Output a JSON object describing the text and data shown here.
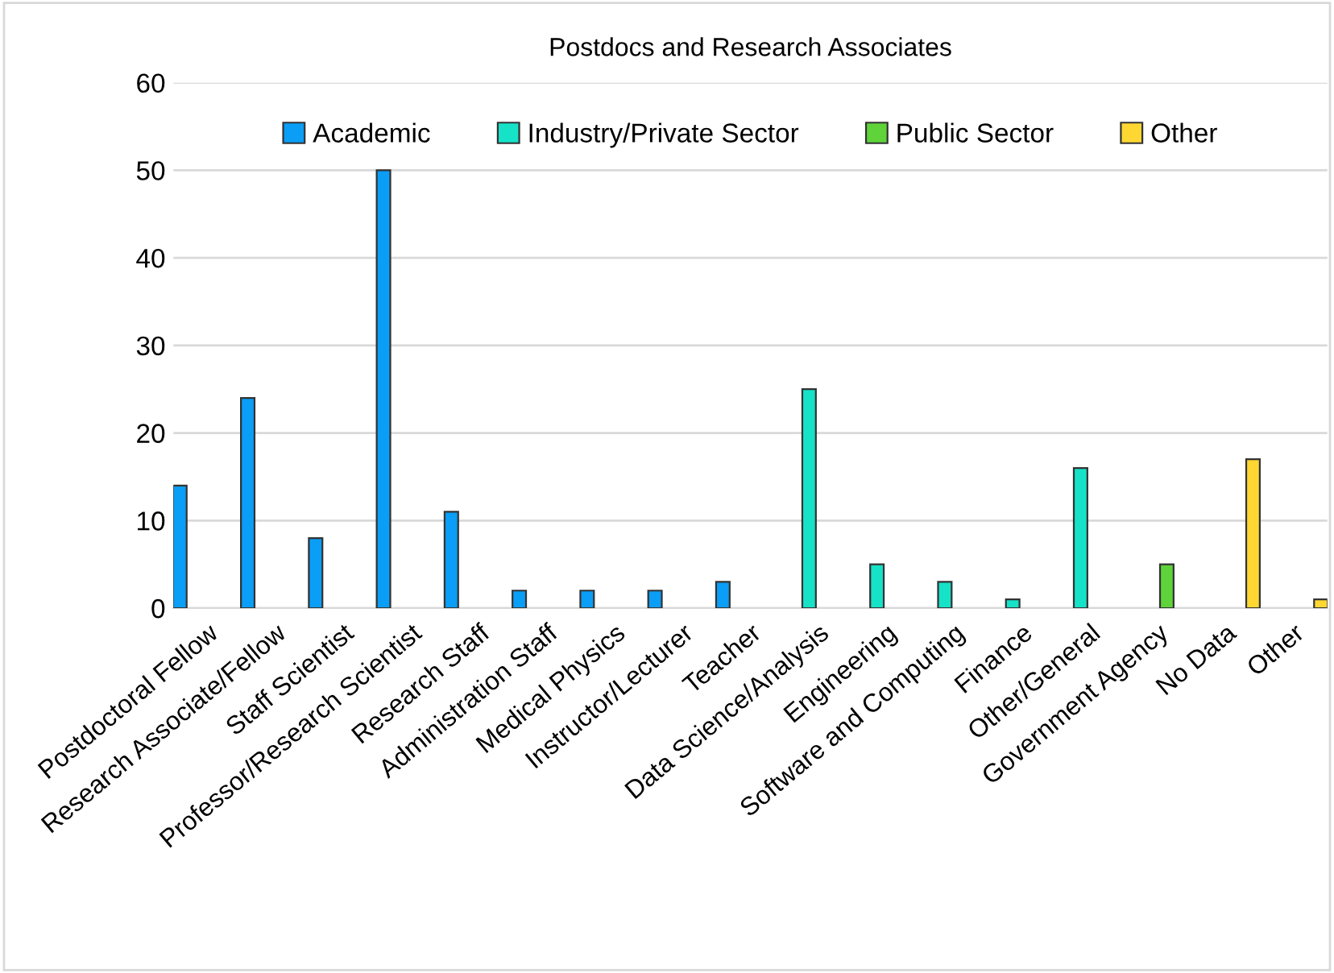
{
  "chart_data": {
    "type": "bar",
    "title": "Postdocs and Research Associates",
    "categories": [
      "Postdoctoral Fellow",
      "Research Associate/Fellow",
      "Staff Scientist",
      "Professor/Research Scientist",
      "Research Staff",
      "Administration Staff",
      "Medical Physics",
      "Instructor/Lecturer",
      "Teacher",
      "Data Science/Analysis",
      "Engineering",
      "Software and Computing",
      "Finance",
      "Other/General",
      "Government Agency",
      "No Data",
      "Other"
    ],
    "series": [
      {
        "name": "Academic",
        "color": "#0a9ef6",
        "values": [
          14,
          24,
          8,
          50,
          11,
          2,
          2,
          2,
          3,
          null,
          null,
          null,
          null,
          null,
          null,
          null,
          null
        ]
      },
      {
        "name": "Industry/Private Sector",
        "color": "#16e2c8",
        "values": [
          null,
          null,
          null,
          null,
          null,
          null,
          null,
          null,
          null,
          25,
          5,
          3,
          1,
          16,
          null,
          null,
          null
        ]
      },
      {
        "name": "Public Sector",
        "color": "#5ed33a",
        "values": [
          null,
          null,
          null,
          null,
          null,
          null,
          null,
          null,
          null,
          null,
          null,
          null,
          null,
          null,
          5,
          null,
          null
        ]
      },
      {
        "name": "Other",
        "color": "#ffd733",
        "values": [
          null,
          null,
          null,
          null,
          null,
          null,
          null,
          null,
          null,
          null,
          null,
          null,
          null,
          null,
          null,
          17,
          1
        ]
      }
    ],
    "ylim": [
      0,
      60
    ],
    "yticks": [
      0,
      10,
      20,
      30,
      40,
      50,
      60
    ],
    "grid": "y",
    "legend": "top"
  }
}
